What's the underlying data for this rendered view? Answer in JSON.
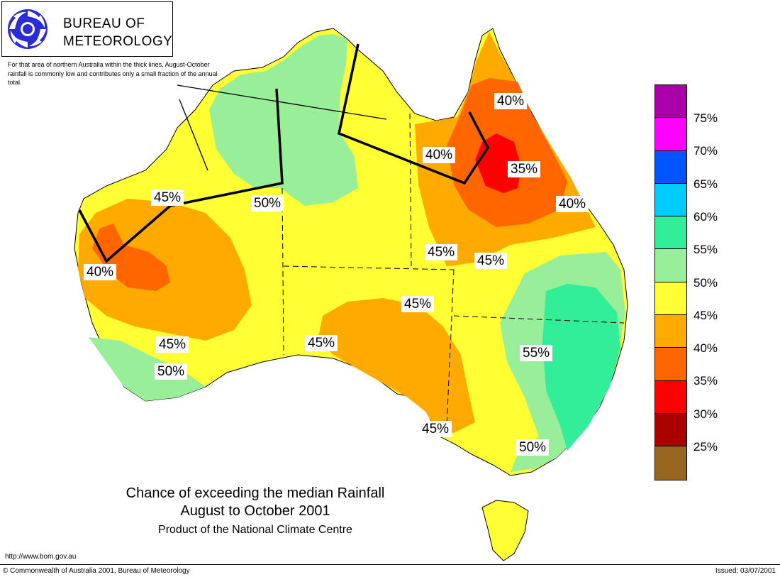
{
  "header": {
    "org_line1": "BUREAU OF",
    "org_line2": "METEOROLOGY",
    "note": "For that area of northern Australia within the thick lines, August-October rainfall is commonly low and contributes only a small fraction of the annual total."
  },
  "map_labels": [
    "40%",
    "40%",
    "35%",
    "40%",
    "45%",
    "45%",
    "50%",
    "45%",
    "40%",
    "45%",
    "45%",
    "45%",
    "55%",
    "45%",
    "50%",
    "50%"
  ],
  "legend": [
    {
      "label": "75%",
      "color": "#aa00aa"
    },
    {
      "label": "70%",
      "color": "#ff00ff"
    },
    {
      "label": "65%",
      "color": "#0055ff"
    },
    {
      "label": "60%",
      "color": "#00ccff"
    },
    {
      "label": "55%",
      "color": "#33ee99"
    },
    {
      "label": "50%",
      "color": "#99ee99"
    },
    {
      "label": "45%",
      "color": "#ffff33"
    },
    {
      "label": "40%",
      "color": "#ffaa00"
    },
    {
      "label": "35%",
      "color": "#ff6600"
    },
    {
      "label": "30%",
      "color": "#ff0000"
    },
    {
      "label": "25%",
      "color": "#aa0000"
    },
    {
      "label": "",
      "color": "#996622"
    }
  ],
  "title": {
    "line1": "Chance of exceeding the median Rainfall",
    "line2": "August to October 2001",
    "line3": "Product of the National Climate Centre"
  },
  "footer": {
    "url": "http://www.bom.gov.au",
    "copyright": "© Commonwealth of Australia 2001, Bureau of Meteorology",
    "issued": "Issued: 03/07/2001"
  }
}
